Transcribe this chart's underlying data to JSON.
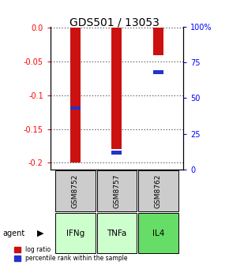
{
  "title": "GDS501 / 13053",
  "samples": [
    "GSM8752",
    "GSM8757",
    "GSM8762"
  ],
  "agents": [
    "IFNg",
    "TNFa",
    "IL4"
  ],
  "log_ratios": [
    -0.2,
    -0.18,
    -0.04
  ],
  "percentile_ranks": [
    0.43,
    0.12,
    0.68
  ],
  "ylim_left": [
    -0.21,
    0.002
  ],
  "yticks_left": [
    0.0,
    -0.05,
    -0.1,
    -0.15,
    -0.2
  ],
  "yticks_right_vals": [
    0.0,
    0.25,
    0.5,
    0.75,
    1.0
  ],
  "ytick_labels_right": [
    "0",
    "25",
    "50",
    "75",
    "100%"
  ],
  "bar_width": 0.25,
  "red_color": "#cc1111",
  "blue_color": "#2233cc",
  "agent_colors": [
    "#ccffcc",
    "#ccffcc",
    "#66dd66"
  ],
  "sample_bg_color": "#cccccc",
  "grid_color": "#888888"
}
